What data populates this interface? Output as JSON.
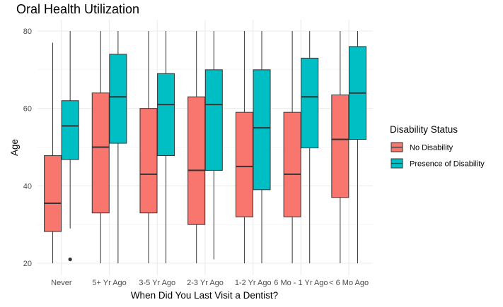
{
  "chart_data": {
    "type": "boxplot",
    "title": "Oral Health Utilization",
    "xlabel": "When Did You Last Visit a Dentist?",
    "ylabel": "Age",
    "ylim": [
      19,
      82
    ],
    "y_ticks": [
      20,
      40,
      60,
      80
    ],
    "grid": true,
    "legend": {
      "title": "Disability Status",
      "position": "right",
      "entries": [
        {
          "name": "No Disability",
          "color": "#F8766D"
        },
        {
          "name": "Presence of Disability",
          "color": "#00BFC4"
        }
      ]
    },
    "categories": [
      "Never",
      "5+ Yr Ago",
      "3-5 Yr Ago",
      "2-3 Yr Ago",
      "1-2 Yr Ago",
      "6 Mo - 1 Yr Ago",
      "< 6 Mo Ago"
    ],
    "series": [
      {
        "name": "No Disability",
        "color": "#F8766D",
        "boxes": [
          {
            "min": 20,
            "q1": 28.2,
            "median": 35.5,
            "q3": 47.8,
            "max": 77,
            "outliers": []
          },
          {
            "min": 20,
            "q1": 33,
            "median": 50,
            "q3": 64,
            "max": 80,
            "outliers": []
          },
          {
            "min": 20,
            "q1": 33,
            "median": 43,
            "q3": 60,
            "max": 80,
            "outliers": []
          },
          {
            "min": 20,
            "q1": 30,
            "median": 44,
            "q3": 63,
            "max": 80,
            "outliers": []
          },
          {
            "min": 20,
            "q1": 32,
            "median": 45,
            "q3": 59,
            "max": 80,
            "outliers": []
          },
          {
            "min": 20,
            "q1": 32,
            "median": 43,
            "q3": 59,
            "max": 80,
            "outliers": []
          },
          {
            "min": 20,
            "q1": 37,
            "median": 52,
            "q3": 63.5,
            "max": 80,
            "outliers": []
          }
        ]
      },
      {
        "name": "Presence of Disability",
        "color": "#00BFC4",
        "boxes": [
          {
            "min": 29,
            "q1": 46.8,
            "median": 55.5,
            "q3": 62,
            "max": 80,
            "outliers": [
              21
            ]
          },
          {
            "min": 20,
            "q1": 51,
            "median": 63,
            "q3": 74,
            "max": 80,
            "outliers": []
          },
          {
            "min": 20,
            "q1": 47.8,
            "median": 61,
            "q3": 69,
            "max": 80,
            "outliers": []
          },
          {
            "min": 21,
            "q1": 44,
            "median": 61,
            "q3": 70,
            "max": 80,
            "outliers": []
          },
          {
            "min": 20,
            "q1": 39,
            "median": 55,
            "q3": 70,
            "max": 80,
            "outliers": []
          },
          {
            "min": 20,
            "q1": 49.8,
            "median": 63,
            "q3": 73,
            "max": 80,
            "outliers": []
          },
          {
            "min": 20,
            "q1": 52,
            "median": 64,
            "q3": 76,
            "max": 80,
            "outliers": []
          }
        ]
      }
    ]
  }
}
